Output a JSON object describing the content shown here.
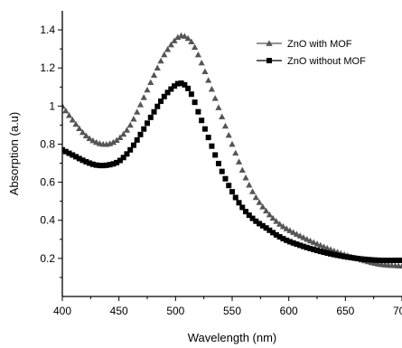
{
  "chart_data": {
    "type": "scatter",
    "xlabel": "Wavelength (nm)",
    "ylabel": "Absorption (a.u)",
    "xlim": [
      400,
      700
    ],
    "ylim": [
      0,
      1.5
    ],
    "x_ticks": [
      "400",
      "450",
      "500",
      "550",
      "600",
      "650",
      "700"
    ],
    "y_ticks": [
      "0.2",
      "0.4",
      "0.6",
      "0.8",
      "1",
      "1.2",
      "1.4"
    ],
    "grid": false,
    "legend_position": "top-right",
    "series": [
      {
        "name": "ZnO with MOF",
        "marker": "triangle",
        "color": "#555555",
        "x": [
          400,
          410,
          420,
          430,
          440,
          450,
          460,
          470,
          480,
          490,
          500,
          505,
          510,
          515,
          520,
          530,
          540,
          550,
          560,
          570,
          580,
          590,
          600,
          620,
          640,
          660,
          680,
          700
        ],
        "y": [
          1.0,
          0.92,
          0.85,
          0.81,
          0.8,
          0.83,
          0.9,
          1.02,
          1.15,
          1.27,
          1.35,
          1.37,
          1.36,
          1.33,
          1.27,
          1.12,
          0.96,
          0.8,
          0.65,
          0.53,
          0.45,
          0.39,
          0.35,
          0.29,
          0.24,
          0.2,
          0.17,
          0.16
        ]
      },
      {
        "name": "ZnO without MOF",
        "marker": "square",
        "color": "#000000",
        "x": [
          400,
          410,
          420,
          430,
          440,
          450,
          460,
          470,
          480,
          490,
          500,
          505,
          510,
          515,
          520,
          530,
          540,
          550,
          560,
          570,
          580,
          590,
          600,
          620,
          640,
          660,
          680,
          700
        ],
        "y": [
          0.77,
          0.74,
          0.71,
          0.69,
          0.69,
          0.71,
          0.77,
          0.86,
          0.96,
          1.05,
          1.11,
          1.12,
          1.1,
          1.05,
          0.97,
          0.82,
          0.67,
          0.55,
          0.46,
          0.4,
          0.36,
          0.32,
          0.29,
          0.25,
          0.22,
          0.2,
          0.19,
          0.19
        ]
      }
    ]
  }
}
